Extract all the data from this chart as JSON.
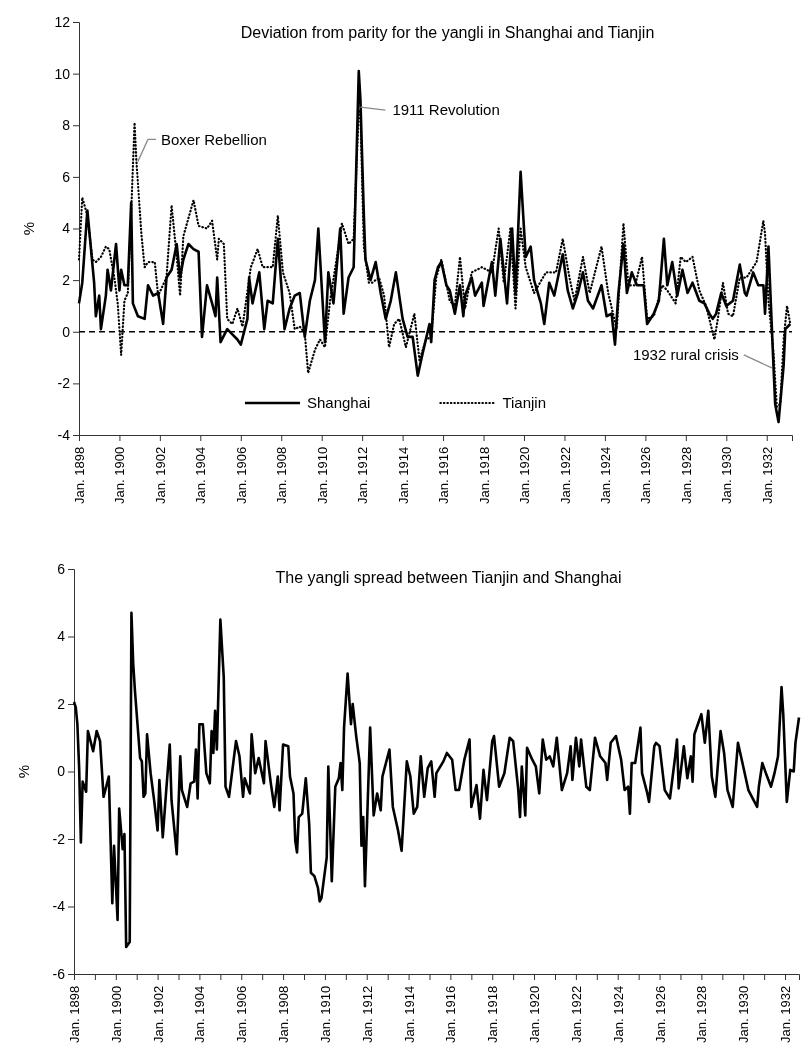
{
  "chart_data": [
    {
      "type": "line",
      "title": "Deviation from parity for the yangli in Shanghai and Tianjin",
      "ylabel": "%",
      "xlim": [
        "1898-01",
        "1933-04"
      ],
      "ylim": [
        -4,
        12
      ],
      "yticks": [
        -4,
        -2,
        0,
        2,
        4,
        6,
        8,
        10,
        12
      ],
      "xticks": [
        {
          "value": "1898-01",
          "label": "Jan. 1898"
        },
        {
          "value": "1900-01",
          "label": "Jan. 1900"
        },
        {
          "value": "1902-01",
          "label": "Jan. 1902"
        },
        {
          "value": "1904-01",
          "label": "Jan. 1904"
        },
        {
          "value": "1906-01",
          "label": "Jan. 1906"
        },
        {
          "value": "1908-01",
          "label": "Jan. 1908"
        },
        {
          "value": "1910-01",
          "label": "Jan. 1910"
        },
        {
          "value": "1912-01",
          "label": "Jan. 1912"
        },
        {
          "value": "1914-01",
          "label": "Jan. 1914"
        },
        {
          "value": "1916-01",
          "label": "Jan. 1916"
        },
        {
          "value": "1918-01",
          "label": "Jan. 1918"
        },
        {
          "value": "1920-01",
          "label": "Jan. 1920"
        },
        {
          "value": "1922-01",
          "label": "Jan. 1922"
        },
        {
          "value": "1924-01",
          "label": "Jan. 1924"
        },
        {
          "value": "1926-01",
          "label": "Jan. 1926"
        },
        {
          "value": "1928-01",
          "label": "Jan. 1928"
        },
        {
          "value": "1930-01",
          "label": "Jan. 1930"
        },
        {
          "value": "1932-01",
          "label": "Jan. 1932"
        }
      ],
      "ref_lines": [
        {
          "axis": "y",
          "value": 0,
          "line_style": "dashed",
          "color": "#000000"
        }
      ],
      "legend": "bottom",
      "annotations": [
        {
          "text": "Boxer Rebellion",
          "x": "1900-12",
          "y": 6.6
        },
        {
          "text": "1911 Revolution",
          "x": "1911-12",
          "y": 8.7
        },
        {
          "text": "1932 rural crisis",
          "x": "1932-04",
          "y": -1.4
        }
      ],
      "series": [
        {
          "name": "Shanghai",
          "color": "#000000",
          "line_style": "solid",
          "x": [
            "1898-01",
            "1898-03",
            "1898-06",
            "1898-10",
            "1898-11",
            "1899-01",
            "1899-02",
            "1899-05",
            "1899-06",
            "1899-08",
            "1899-11",
            "1900-01",
            "1900-02",
            "1900-04",
            "1900-06",
            "1900-08",
            "1900-09",
            "1900-12",
            "1901-04",
            "1901-06",
            "1901-09",
            "1901-12",
            "1902-03",
            "1902-05",
            "1902-08",
            "1902-11",
            "1903-01",
            "1903-03",
            "1903-06",
            "1903-09",
            "1903-12",
            "1904-02",
            "1904-05",
            "1904-08",
            "1904-10",
            "1904-11",
            "1905-01",
            "1905-05",
            "1905-08",
            "1905-11",
            "1906-01",
            "1906-05",
            "1906-06",
            "1906-08",
            "1906-12",
            "1907-03",
            "1907-05",
            "1907-08",
            "1907-11",
            "1908-03",
            "1908-06",
            "1908-09",
            "1908-12",
            "1909-03",
            "1909-06",
            "1909-09",
            "1909-11",
            "1910-03",
            "1910-05",
            "1910-08",
            "1910-12",
            "1911-02",
            "1911-05",
            "1911-08",
            "1911-11",
            "1911-12",
            "1912-02",
            "1912-03",
            "1912-06",
            "1912-09",
            "1912-12",
            "1913-03",
            "1913-06",
            "1913-09",
            "1914-01",
            "1914-04",
            "1914-07",
            "1914-10",
            "1915-01",
            "1915-05",
            "1915-06",
            "1915-08",
            "1915-10",
            "1915-12",
            "1916-03",
            "1916-05",
            "1916-08",
            "1916-11",
            "1917-01",
            "1917-02",
            "1917-06",
            "1917-08",
            "1917-12",
            "1918-01",
            "1918-06",
            "1918-08",
            "1918-11",
            "1919-03",
            "1919-06",
            "1919-08",
            "1919-11",
            "1920-02",
            "1920-05",
            "1920-07",
            "1920-11",
            "1921-01",
            "1921-04",
            "1921-07",
            "1921-12",
            "1922-03",
            "1922-06",
            "1922-09",
            "1922-12",
            "1923-03",
            "1923-06",
            "1923-11",
            "1924-02",
            "1924-05",
            "1924-07",
            "1924-09",
            "1924-12",
            "1925-02",
            "1925-05",
            "1925-08",
            "1925-12",
            "1926-02",
            "1926-06",
            "1926-09",
            "1926-12",
            "1927-02",
            "1927-05",
            "1927-08",
            "1927-11",
            "1928-02",
            "1928-05",
            "1928-09",
            "1928-12",
            "1929-03",
            "1929-05",
            "1929-07",
            "1929-10",
            "1930-01",
            "1930-05",
            "1930-09",
            "1930-12",
            "1931-01",
            "1931-05",
            "1931-08",
            "1931-11",
            "1931-12",
            "1932-02",
            "1932-05",
            "1932-06",
            "1932-08",
            "1932-11",
            "1932-12",
            "1933-03"
          ],
          "values": [
            1.1,
            1.9,
            4.7,
            1.9,
            0.6,
            1.4,
            0.1,
            1.4,
            2.4,
            1.6,
            3.4,
            1.6,
            2.4,
            1.8,
            1.8,
            5.0,
            1.1,
            0.6,
            0.5,
            1.8,
            1.4,
            1.5,
            0.3,
            2.1,
            2.4,
            3.4,
            2.1,
            2.8,
            3.4,
            3.2,
            3.1,
            -0.2,
            1.8,
            1.1,
            0.6,
            2.1,
            -0.4,
            0.1,
            -0.1,
            -0.3,
            -0.5,
            0.5,
            2.1,
            1.1,
            2.3,
            0.1,
            1.2,
            1.1,
            3.6,
            0.1,
            0.9,
            1.4,
            1.5,
            -0.2,
            1.2,
            2.0,
            4.0,
            -0.4,
            2.3,
            1.1,
            4.0,
            0.7,
            2.1,
            2.5,
            10.1,
            9.0,
            4.5,
            2.8,
            2.0,
            2.7,
            1.5,
            0.5,
            1.2,
            2.3,
            0.5,
            -0.2,
            -0.2,
            -1.7,
            -0.8,
            0.3,
            -0.4,
            2.0,
            2.5,
            2.7,
            1.8,
            1.6,
            0.7,
            1.8,
            0.6,
            1.4,
            2.1,
            1.4,
            1.9,
            1.0,
            2.7,
            1.4,
            3.6,
            1.1,
            4.0,
            1.5,
            6.2,
            2.9,
            3.3,
            2.0,
            1.1,
            0.3,
            1.9,
            1.4,
            3.0,
            1.6,
            0.9,
            1.5,
            2.3,
            1.2,
            0.9,
            1.8,
            0.6,
            0.7,
            -0.5,
            1.5,
            3.4,
            1.5,
            2.3,
            1.8,
            1.8,
            0.3,
            0.7,
            1.2,
            3.6,
            1.8,
            2.7,
            1.4,
            2.4,
            1.5,
            1.9,
            1.2,
            1.1,
            0.7,
            0.5,
            0.7,
            1.5,
            1.0,
            1.2,
            2.6,
            1.5,
            1.4,
            2.3,
            1.8,
            1.8,
            0.7,
            3.3,
            -1.3,
            -2.8,
            -3.5,
            -1.3,
            0.1,
            0.3
          ]
        },
        {
          "name": "Tianjin",
          "color": "#000000",
          "line_style": "dotted",
          "x": [
            "1898-01",
            "1898-03",
            "1898-06",
            "1898-09",
            "1898-11",
            "1899-02",
            "1899-05",
            "1899-07",
            "1899-10",
            "1899-12",
            "1900-02",
            "1900-04",
            "1900-06",
            "1900-08",
            "1900-10",
            "1900-11",
            "1901-02",
            "1901-04",
            "1901-06",
            "1901-10",
            "1901-12",
            "1902-05",
            "1902-08",
            "1902-11",
            "1903-01",
            "1903-03",
            "1903-09",
            "1903-12",
            "1904-05",
            "1904-08",
            "1904-11",
            "1904-12",
            "1905-03",
            "1905-05",
            "1905-08",
            "1905-11",
            "1906-02",
            "1906-07",
            "1906-11",
            "1907-02",
            "1907-08",
            "1907-11",
            "1908-02",
            "1908-06",
            "1908-09",
            "1908-12",
            "1909-03",
            "1909-05",
            "1909-09",
            "1909-12",
            "1910-03",
            "1910-06",
            "1910-11",
            "1911-01",
            "1911-05",
            "1911-08",
            "1911-11",
            "1911-12",
            "1912-02",
            "1912-05",
            "1912-07",
            "1912-11",
            "1913-02",
            "1913-05",
            "1913-08",
            "1913-11",
            "1914-03",
            "1914-08",
            "1914-11",
            "1915-03",
            "1915-06",
            "1915-09",
            "1915-12",
            "1916-05",
            "1916-08",
            "1916-11",
            "1917-02",
            "1917-06",
            "1917-12",
            "1918-06",
            "1918-10",
            "1919-01",
            "1919-05",
            "1919-08",
            "1919-11",
            "1920-02",
            "1920-07",
            "1921-02",
            "1921-08",
            "1921-12",
            "1922-04",
            "1922-07",
            "1922-12",
            "1923-04",
            "1923-11",
            "1924-03",
            "1924-08",
            "1924-12",
            "1925-03",
            "1925-07",
            "1925-11",
            "1926-02",
            "1926-06",
            "1926-11",
            "1927-02",
            "1927-07",
            "1927-10",
            "1928-01",
            "1928-05",
            "1928-09",
            "1929-01",
            "1929-06",
            "1929-08",
            "1929-11",
            "1930-02",
            "1930-05",
            "1930-09",
            "1931-01",
            "1931-07",
            "1931-11",
            "1931-12",
            "1932-02",
            "1932-05",
            "1932-07",
            "1932-09",
            "1932-11",
            "1933-01",
            "1933-03"
          ],
          "values": [
            2.8,
            5.2,
            4.5,
            2.8,
            2.7,
            2.9,
            3.3,
            3.2,
            2.1,
            1.1,
            -0.9,
            1.2,
            1.5,
            4.6,
            8.1,
            6.7,
            3.8,
            2.5,
            2.7,
            2.7,
            1.4,
            2.1,
            4.9,
            2.9,
            1.4,
            3.7,
            5.1,
            4.1,
            4.0,
            4.3,
            2.8,
            3.6,
            3.4,
            0.5,
            0.3,
            0.9,
            0.2,
            2.5,
            3.2,
            2.5,
            2.5,
            4.5,
            2.3,
            1.5,
            0.1,
            0.2,
            -0.05,
            -1.6,
            -0.7,
            -0.3,
            -0.6,
            1.2,
            3.3,
            4.2,
            3.4,
            3.6,
            8.6,
            8.5,
            3.3,
            1.9,
            1.9,
            2.1,
            1.4,
            -0.6,
            0.3,
            0.5,
            -0.6,
            0.7,
            -1.1,
            -0.3,
            -0.2,
            2.1,
            2.8,
            1.2,
            1.0,
            2.9,
            0.9,
            2.3,
            2.5,
            2.3,
            4.0,
            1.9,
            4.0,
            0.9,
            4.0,
            2.5,
            1.5,
            2.3,
            2.3,
            3.6,
            2.1,
            1.2,
            2.9,
            1.5,
            3.3,
            1.5,
            0.1,
            4.2,
            1.8,
            1.8,
            2.9,
            0.5,
            0.6,
            1.8,
            1.6,
            1.1,
            2.9,
            2.7,
            2.9,
            1.6,
            1.0,
            -0.3,
            0.5,
            1.9,
            0.7,
            0.6,
            2.1,
            2.1,
            2.7,
            4.3,
            3.8,
            1.2,
            -0.8,
            -2.9,
            -2.8,
            -0.3,
            1.0,
            0.3
          ]
        }
      ]
    },
    {
      "type": "line",
      "title": "The yangli spread between Tianjin and Shanghai",
      "ylabel": "%",
      "xlim": [
        "1898-01",
        "1932-09"
      ],
      "ylim": [
        -6,
        6
      ],
      "yticks": [
        -6,
        -4,
        -2,
        0,
        2,
        4,
        6
      ],
      "xticks": [
        {
          "value": "1898-01",
          "label": "Jan. 1898"
        },
        {
          "value": "1899-01",
          "label": null
        },
        {
          "value": "1900-01",
          "label": "Jan. 1900"
        },
        {
          "value": "1901-01",
          "label": null
        },
        {
          "value": "1902-01",
          "label": "Jan. 1902"
        },
        {
          "value": "1903-01",
          "label": null
        },
        {
          "value": "1904-01",
          "label": "Jan. 1904"
        },
        {
          "value": "1905-01",
          "label": null
        },
        {
          "value": "1906-01",
          "label": "Jan. 1906"
        },
        {
          "value": "1907-01",
          "label": null
        },
        {
          "value": "1908-01",
          "label": "Jan. 1908"
        },
        {
          "value": "1909-01",
          "label": null
        },
        {
          "value": "1910-01",
          "label": "Jan. 1910"
        },
        {
          "value": "1911-01",
          "label": null
        },
        {
          "value": "1912-01",
          "label": "Jan. 1912"
        },
        {
          "value": "1913-01",
          "label": null
        },
        {
          "value": "1914-01",
          "label": "Jan. 1914"
        },
        {
          "value": "1915-01",
          "label": null
        },
        {
          "value": "1916-01",
          "label": "Jan. 1916"
        },
        {
          "value": "1917-01",
          "label": null
        },
        {
          "value": "1918-01",
          "label": "Jan. 1918"
        },
        {
          "value": "1919-01",
          "label": null
        },
        {
          "value": "1920-01",
          "label": "Jan. 1920"
        },
        {
          "value": "1921-01",
          "label": null
        },
        {
          "value": "1922-01",
          "label": "Jan. 1922"
        },
        {
          "value": "1923-01",
          "label": null
        },
        {
          "value": "1924-01",
          "label": "Jan. 1924"
        },
        {
          "value": "1925-01",
          "label": null
        },
        {
          "value": "1926-01",
          "label": "Jan. 1926"
        },
        {
          "value": "1927-01",
          "label": null
        },
        {
          "value": "1928-01",
          "label": "Jan. 1928"
        },
        {
          "value": "1929-01",
          "label": null
        },
        {
          "value": "1930-01",
          "label": "Jan. 1930"
        },
        {
          "value": "1931-01",
          "label": null
        },
        {
          "value": "1932-01",
          "label": "Jan. 1932"
        }
      ],
      "series": [
        {
          "color": "#000000",
          "line_style": "solid",
          "x": [
            "1898-01",
            "1898-02",
            "1898-03",
            "1898-04",
            "1898-05",
            "1898-06",
            "1898-08",
            "1898-09",
            "1898-12",
            "1899-02",
            "1899-04",
            "1899-06",
            "1899-09",
            "1899-11",
            "1899-12",
            "1900-02",
            "1900-03",
            "1900-05",
            "1900-06",
            "1900-07",
            "1900-09",
            "1900-10",
            "1900-11",
            "1900-12",
            "1901-03",
            "1901-04",
            "1901-05",
            "1901-06",
            "1901-07",
            "1901-09",
            "1901-11",
            "1902-01",
            "1902-02",
            "1902-04",
            "1902-06",
            "1902-08",
            "1902-09",
            "1902-12",
            "1903-02",
            "1903-03",
            "1903-06",
            "1903-08",
            "1903-10",
            "1903-11",
            "1903-12",
            "1904-01",
            "1904-03",
            "1904-05",
            "1904-07",
            "1904-08",
            "1904-09",
            "1904-10",
            "1904-11",
            "1905-01",
            "1905-03",
            "1905-04",
            "1905-06",
            "1905-10",
            "1905-12",
            "1906-02",
            "1906-03",
            "1906-06",
            "1906-07",
            "1906-09",
            "1906-11",
            "1907-02",
            "1907-03",
            "1907-06",
            "1907-08",
            "1907-10",
            "1907-11",
            "1908-01",
            "1908-04",
            "1908-05",
            "1908-07",
            "1908-08",
            "1908-09",
            "1908-10",
            "1908-12",
            "1909-02",
            "1909-04",
            "1909-05",
            "1909-07",
            "1909-09",
            "1909-10",
            "1909-11",
            "1910-02",
            "1910-03",
            "1910-05",
            "1910-07",
            "1910-09",
            "1910-10",
            "1910-11",
            "1910-12",
            "1911-02",
            "1911-04",
            "1911-05",
            "1911-07",
            "1911-09",
            "1911-10",
            "1911-11",
            "1911-12",
            "1912-03",
            "1912-05",
            "1912-07",
            "1912-09",
            "1912-10",
            "1912-12",
            "1913-02",
            "1913-04",
            "1913-07",
            "1913-09",
            "1913-12",
            "1914-02",
            "1914-04",
            "1914-06",
            "1914-08",
            "1914-10",
            "1914-12",
            "1915-02",
            "1915-04",
            "1915-05",
            "1915-09",
            "1915-11",
            "1916-02",
            "1916-04",
            "1916-06",
            "1916-09",
            "1916-12",
            "1917-01",
            "1917-04",
            "1917-06",
            "1917-08",
            "1917-10",
            "1918-01",
            "1918-02",
            "1918-05",
            "1918-08",
            "1918-11",
            "1919-01",
            "1919-04",
            "1919-05",
            "1919-06",
            "1919-08",
            "1919-09",
            "1919-12",
            "1920-02",
            "1920-04",
            "1920-06",
            "1920-08",
            "1920-10",
            "1920-12",
            "1921-02",
            "1921-05",
            "1921-08",
            "1921-10",
            "1921-11",
            "1922-01",
            "1922-03",
            "1922-04",
            "1922-07",
            "1922-09",
            "1922-12",
            "1923-03",
            "1923-06",
            "1923-07",
            "1923-09",
            "1923-12",
            "1924-03",
            "1924-05",
            "1924-07",
            "1924-08",
            "1924-09",
            "1924-11",
            "1925-02",
            "1925-03",
            "1925-06",
            "1925-07",
            "1925-10",
            "1925-11",
            "1926-01",
            "1926-04",
            "1926-07",
            "1926-10",
            "1926-11",
            "1926-12",
            "1927-03",
            "1927-05",
            "1927-07",
            "1927-08",
            "1927-09",
            "1927-11",
            "1928-01",
            "1928-03",
            "1928-05",
            "1928-07",
            "1928-09",
            "1928-12",
            "1929-02",
            "1929-04",
            "1929-07",
            "1929-10",
            "1930-01",
            "1930-04",
            "1930-07",
            "1930-09",
            "1930-10",
            "1930-12",
            "1931-02",
            "1931-05",
            "1931-07",
            "1931-09",
            "1931-11",
            "1931-12",
            "1932-02",
            "1932-04",
            "1932-06",
            "1932-07",
            "1932-09"
          ],
          "values": [
            2.06,
            1.9,
            1.4,
            0.1,
            -2.1,
            -0.3,
            -0.6,
            1.2,
            0.6,
            1.2,
            0.9,
            -0.75,
            -0.15,
            -3.9,
            -2.2,
            -4.4,
            -1.1,
            -2.3,
            -1.85,
            -5.2,
            -5.05,
            4.7,
            3.2,
            2.4,
            0.4,
            0.3,
            -0.75,
            -0.65,
            1.1,
            -0.05,
            -0.85,
            -1.75,
            -0.25,
            -1.95,
            -0.55,
            0.8,
            -0.85,
            -2.45,
            0.45,
            -0.55,
            -1.05,
            -0.35,
            -0.3,
            0.65,
            -0.8,
            1.4,
            1.4,
            -0.05,
            -0.35,
            1.2,
            0.55,
            1.8,
            0.65,
            4.5,
            2.8,
            -0.45,
            -0.75,
            0.9,
            0.45,
            -0.75,
            -0.2,
            -0.65,
            1.1,
            -0.05,
            0.4,
            -0.35,
            0.9,
            -0.35,
            -1.05,
            -0.15,
            -1.15,
            0.8,
            0.75,
            -0.15,
            -0.65,
            -2.05,
            -2.4,
            -1.35,
            -1.25,
            -0.2,
            -1.55,
            -3.0,
            -3.1,
            -3.45,
            -3.85,
            -3.75,
            -2.55,
            0.15,
            -3.25,
            -0.45,
            -0.2,
            0.25,
            -0.55,
            1.3,
            2.9,
            1.4,
            2.0,
            1.05,
            0.25,
            -2.2,
            -1.35,
            -3.4,
            1.3,
            -1.3,
            -0.65,
            -1.15,
            -0.15,
            0.25,
            0.65,
            -1.05,
            -1.75,
            -2.35,
            0.3,
            -0.15,
            -1.25,
            -1.05,
            0.45,
            -0.75,
            0.1,
            0.3,
            -0.75,
            -0.05,
            0.3,
            0.55,
            0.35,
            -0.55,
            -0.55,
            0.35,
            0.95,
            -1.05,
            -0.4,
            -1.4,
            0.05,
            -0.85,
            0.9,
            1.05,
            -0.45,
            -0.05,
            1.0,
            0.9,
            -0.55,
            -1.35,
            0.15,
            -1.3,
            0.7,
            0.35,
            0.15,
            -0.65,
            0.95,
            0.35,
            0.45,
            0.15,
            1.0,
            -0.55,
            -0.05,
            0.75,
            -0.25,
            1.0,
            0.15,
            0.95,
            -0.45,
            -0.55,
            1.0,
            0.45,
            0.25,
            -0.25,
            0.85,
            1.05,
            0.35,
            -0.55,
            -0.45,
            -1.25,
            0.25,
            0.25,
            1.3,
            -0.05,
            -0.65,
            -0.9,
            0.75,
            0.85,
            0.75,
            -0.55,
            -0.8,
            0.45,
            0.95,
            -0.5,
            0.75,
            -0.2,
            0.45,
            -0.3,
            1.1,
            1.4,
            1.7,
            0.85,
            1.8,
            -0.15,
            -0.75,
            1.2,
            0.55,
            -0.55,
            -1.05,
            0.85,
            0.15,
            -0.55,
            -0.85,
            -1.05,
            -0.45,
            0.25,
            -0.05,
            -0.45,
            -0.05,
            0.45,
            2.5,
            1.7,
            -0.9,
            0.05,
            0.0,
            0.85,
            1.6
          ]
        }
      ]
    }
  ]
}
